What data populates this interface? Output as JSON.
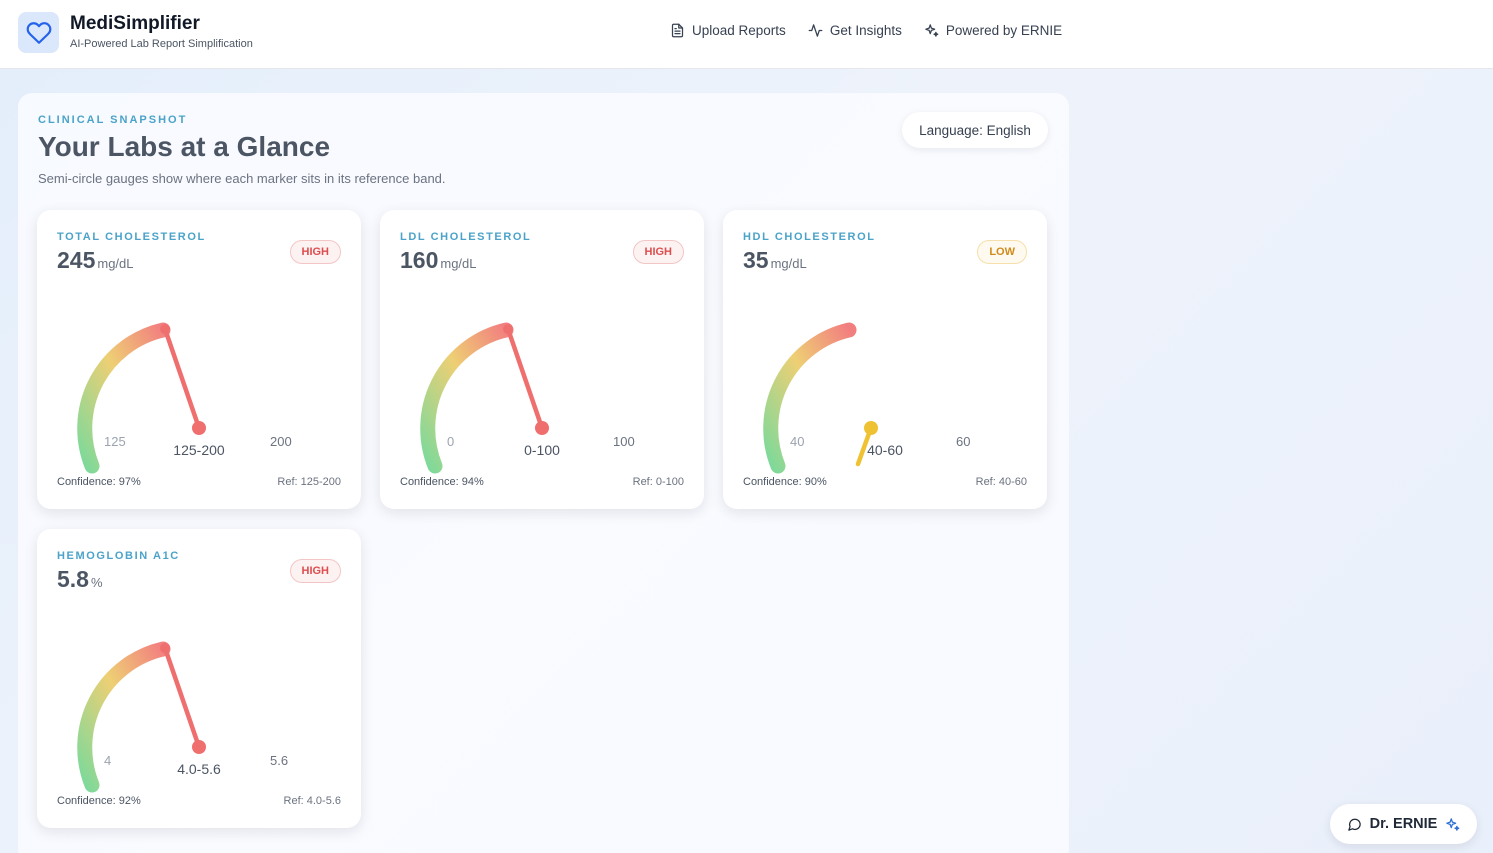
{
  "brand": {
    "name": "MediSimplifier",
    "tagline": "AI-Powered Lab Report Simplification"
  },
  "nav": {
    "items": [
      {
        "label": "Upload Reports",
        "icon": "document-icon"
      },
      {
        "label": "Get Insights",
        "icon": "pulse-icon"
      },
      {
        "label": "Powered by ERNIE",
        "icon": "sparkles-icon"
      }
    ]
  },
  "header": {
    "eyebrow": "CLINICAL SNAPSHOT",
    "title": "Your Labs at a Glance",
    "subtitle": "Semi-circle gauges show where each marker sits in its reference band.",
    "language_button": "Language: English"
  },
  "colors": {
    "high": "#ef6f6f",
    "low": "#efc233",
    "arc_start": "#7ed99a",
    "arc_mid": "#eecf74",
    "arc_end": "#f27f80"
  },
  "cards": [
    {
      "label": "TOTAL CHOLESTEROL",
      "value": "245",
      "unit": "mg/dL",
      "status": "HIGH",
      "status_kind": "high",
      "ref_min_label": "125",
      "ref_max_label": "200",
      "band_label": "125-200",
      "confidence": "Confidence: 97%",
      "ref_text": "Ref: 125-200"
    },
    {
      "label": "LDL CHOLESTEROL",
      "value": "160",
      "unit": "mg/dL",
      "status": "HIGH",
      "status_kind": "high",
      "ref_min_label": "0",
      "ref_max_label": "100",
      "band_label": "0-100",
      "confidence": "Confidence: 94%",
      "ref_text": "Ref: 0-100"
    },
    {
      "label": "HDL CHOLESTEROL",
      "value": "35",
      "unit": "mg/dL",
      "status": "LOW",
      "status_kind": "low",
      "ref_min_label": "40",
      "ref_max_label": "60",
      "band_label": "40-60",
      "confidence": "Confidence: 90%",
      "ref_text": "Ref: 40-60"
    },
    {
      "label": "HEMOGLOBIN A1C",
      "value": "5.8",
      "unit": "%",
      "status": "HIGH",
      "status_kind": "high",
      "ref_min_label": "4",
      "ref_max_label": "5.6",
      "band_label": "4.0-5.6",
      "confidence": "Confidence: 92%",
      "ref_text": "Ref: 4.0-5.6"
    }
  ],
  "chat": {
    "label": "Dr. ERNIE"
  }
}
